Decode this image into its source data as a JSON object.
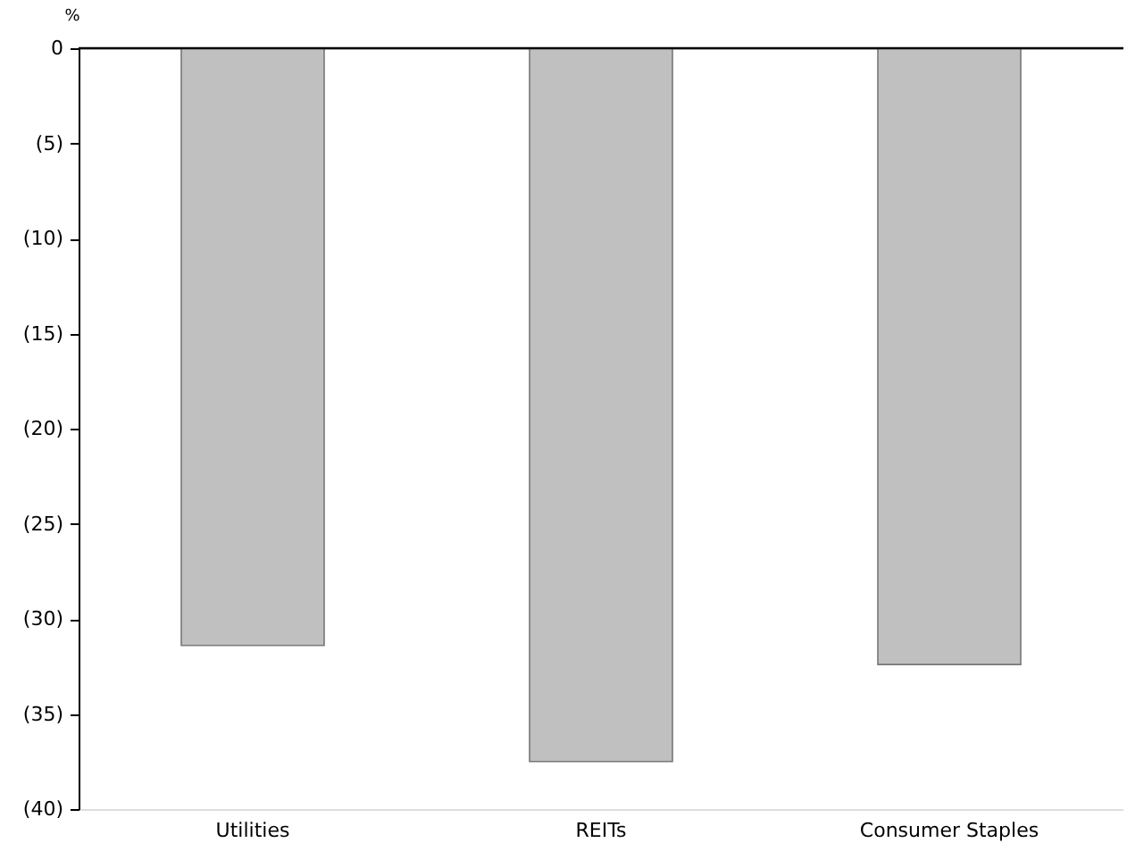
{
  "chart_data": {
    "type": "bar",
    "ylabel": "%",
    "categories": [
      "Utilities",
      "REITs",
      "Consumer Staples"
    ],
    "values": [
      -31.4,
      -37.5,
      -32.4
    ],
    "color": "#c0c0c0",
    "ylim": [
      -40,
      0
    ],
    "yticks": [
      0,
      {
        "value": -5,
        "label": "(5)"
      },
      {
        "value": -10,
        "label": "(10)"
      },
      {
        "value": -15,
        "label": "(15)"
      },
      {
        "value": -20,
        "label": "(20)"
      },
      {
        "value": -25,
        "label": "(25)"
      },
      {
        "value": -30,
        "label": "(30)"
      },
      {
        "value": -35,
        "label": "(35)"
      },
      {
        "value": -40,
        "label": "(40)"
      }
    ],
    "grid": false
  }
}
